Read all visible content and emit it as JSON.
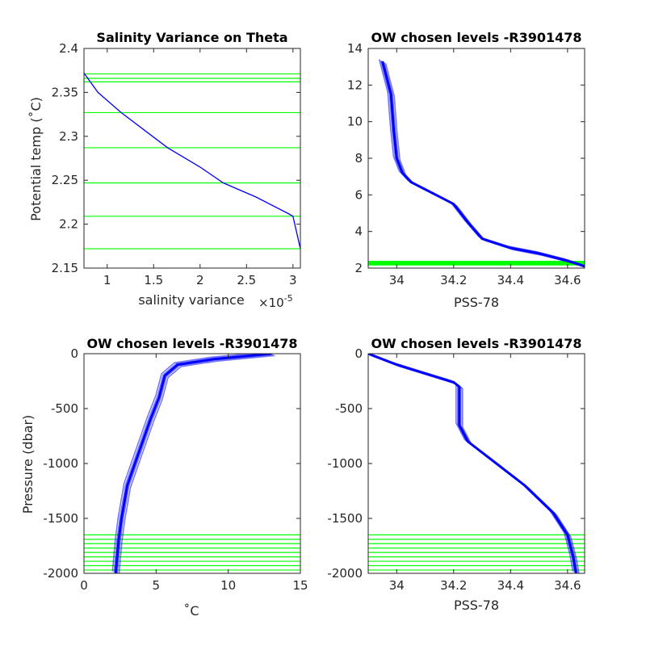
{
  "colors": {
    "profile": "#0000ff",
    "levels": "#00ff00",
    "axis": "#262626",
    "background": "#ffffff"
  },
  "chart_data": [
    {
      "type": "line",
      "title": "Salinity Variance on Theta",
      "xlabel": "salinity variance",
      "ylabel": "Potential temp (˚C)",
      "x_exponent_label": "×10",
      "x_exponent_power": "-5",
      "xlim": [
        0.75,
        3.08
      ],
      "ylim": [
        2.15,
        2.4
      ],
      "xticks": [
        1,
        1.5,
        2,
        2.5,
        3
      ],
      "xtick_labels": [
        "1",
        "1.5",
        "2",
        "2.5",
        "3"
      ],
      "yticks": [
        2.15,
        2.2,
        2.25,
        2.3,
        2.35,
        2.4
      ],
      "ytick_labels": [
        "2.15",
        "2.2",
        "2.25",
        "2.3",
        "2.35",
        "2.4"
      ],
      "series": [
        {
          "x": [
            0.75,
            0.9,
            1.15,
            1.4,
            1.65,
            2.0,
            2.25,
            2.6,
            2.95,
            3.0,
            3.08
          ],
          "y": [
            2.372,
            2.35,
            2.327,
            2.307,
            2.287,
            2.265,
            2.247,
            2.231,
            2.212,
            2.209,
            2.172
          ]
        }
      ],
      "chosen_levels": [
        2.172,
        2.209,
        2.247,
        2.287,
        2.327,
        2.362,
        2.366,
        2.371
      ]
    },
    {
      "type": "line",
      "title": "OW chosen levels -R3901478",
      "xlabel": "PSS-78",
      "ylabel": "",
      "xlim": [
        33.9,
        34.66
      ],
      "ylim": [
        2,
        14
      ],
      "xticks": [
        34,
        34.2,
        34.4,
        34.6
      ],
      "xtick_labels": [
        "34",
        "34.2",
        "34.4",
        "34.6"
      ],
      "yticks": [
        2,
        4,
        6,
        8,
        10,
        12,
        14
      ],
      "ytick_labels": [
        "2",
        "4",
        "6",
        "8",
        "10",
        "12",
        "14"
      ],
      "series": [
        {
          "x": [
            33.95,
            33.98,
            33.99,
            34.0,
            34.02,
            34.05,
            34.1,
            34.15,
            34.2,
            34.25,
            34.3,
            34.4,
            34.5,
            34.6,
            34.66
          ],
          "y": [
            13.3,
            11.5,
            9.5,
            8.0,
            7.2,
            6.7,
            6.3,
            5.9,
            5.5,
            4.5,
            3.6,
            3.1,
            2.8,
            2.4,
            2.1
          ]
        }
      ],
      "chosen_levels": [
        2.172,
        2.209,
        2.247,
        2.287,
        2.327,
        2.362,
        2.366,
        2.371
      ]
    },
    {
      "type": "line",
      "title": "OW chosen levels -R3901478",
      "xlabel": "˚C",
      "ylabel": "Pressure (dbar)",
      "xlim": [
        0,
        15
      ],
      "ylim": [
        -2000,
        0
      ],
      "xticks": [
        0,
        5,
        10,
        15
      ],
      "xtick_labels": [
        "0",
        "5",
        "10",
        "15"
      ],
      "yticks": [
        -2000,
        -1500,
        -1000,
        -500,
        0
      ],
      "ytick_labels": [
        "-2000",
        "-1500",
        "-1000",
        "-500",
        "0"
      ],
      "series": [
        {
          "x": [
            13.0,
            9.0,
            6.5,
            5.6,
            5.2,
            4.6,
            3.8,
            3.0,
            2.6,
            2.4,
            2.3,
            2.2
          ],
          "y": [
            0,
            -50,
            -100,
            -200,
            -400,
            -600,
            -900,
            -1200,
            -1500,
            -1700,
            -1850,
            -2000
          ]
        }
      ],
      "chosen_levels": [
        -1650,
        -1690,
        -1730,
        -1770,
        -1810,
        -1850,
        -1890,
        -1930,
        -1970
      ]
    },
    {
      "type": "line",
      "title": "OW chosen levels -R3901478",
      "xlabel": "PSS-78",
      "ylabel": "",
      "xlim": [
        33.9,
        34.66
      ],
      "ylim": [
        -2000,
        0
      ],
      "xticks": [
        34,
        34.2,
        34.4,
        34.6
      ],
      "xtick_labels": [
        "34",
        "34.2",
        "34.4",
        "34.6"
      ],
      "yticks": [
        -2000,
        -1500,
        -1000,
        -500,
        0
      ],
      "ytick_labels": [
        "-2000",
        "-1500",
        "-1000",
        "-500",
        "0"
      ],
      "series": [
        {
          "x": [
            33.9,
            34.0,
            34.1,
            34.2,
            34.22,
            34.22,
            34.25,
            34.35,
            34.45,
            34.55,
            34.6,
            34.62,
            34.63
          ],
          "y": [
            0,
            -100,
            -180,
            -260,
            -300,
            -650,
            -800,
            -1000,
            -1200,
            -1450,
            -1650,
            -1850,
            -2000
          ]
        }
      ],
      "chosen_levels": [
        -1650,
        -1690,
        -1730,
        -1770,
        -1810,
        -1850,
        -1890,
        -1930,
        -1970
      ]
    }
  ]
}
